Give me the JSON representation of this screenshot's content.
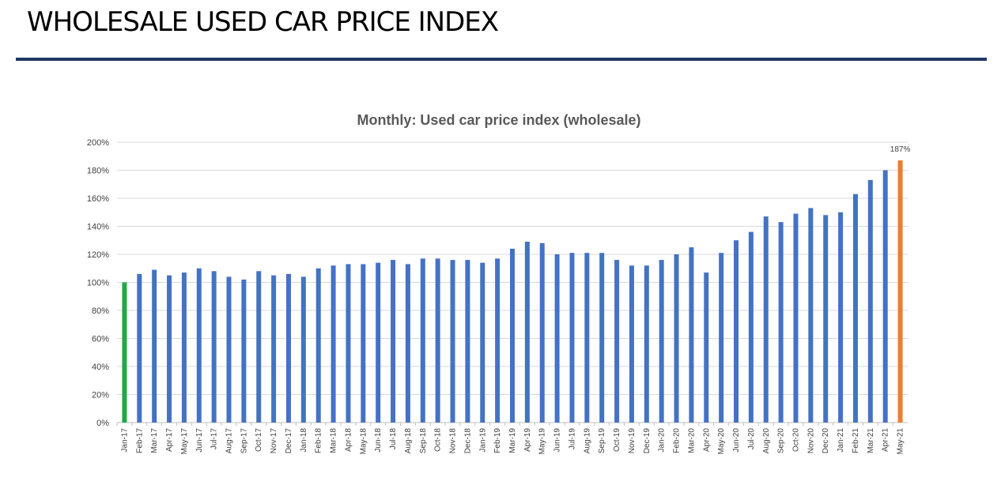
{
  "header": {
    "title": "WHOLESALE USED CAR PRICE INDEX"
  },
  "colors": {
    "rule": "#1f3864",
    "default_bar": "#4472c4",
    "first_bar": "#22a844",
    "last_bar": "#ed7d31",
    "grid": "#d9d9d9"
  },
  "chart_data": {
    "type": "bar",
    "title": "Monthly: Used car price index (wholesale)",
    "xlabel": "",
    "ylabel": "",
    "ylim": [
      0,
      200
    ],
    "yticks": [
      0,
      20,
      40,
      60,
      80,
      100,
      120,
      140,
      160,
      180,
      200
    ],
    "ytick_suffix": "%",
    "grid": true,
    "legend": "none",
    "categories": [
      "Jan-17",
      "Feb-17",
      "Mar-17",
      "Apr-17",
      "May-17",
      "Jun-17",
      "Jul-17",
      "Aug-17",
      "Sep-17",
      "Oct-17",
      "Nov-17",
      "Dec-17",
      "Jan-18",
      "Feb-18",
      "Mar-18",
      "Apr-18",
      "May-18",
      "Jun-18",
      "Jul-18",
      "Aug-18",
      "Sep-18",
      "Oct-18",
      "Nov-18",
      "Dec-18",
      "Jan-19",
      "Feb-19",
      "Mar-19",
      "Apr-19",
      "May-19",
      "Jun-19",
      "Jul-19",
      "Aug-19",
      "Sep-19",
      "Oct-19",
      "Nov-19",
      "Dec-19",
      "Jan-20",
      "Feb-20",
      "Mar-20",
      "Apr-20",
      "May-20",
      "Jun-20",
      "Jul-20",
      "Aug-20",
      "Sep-20",
      "Oct-20",
      "Nov-20",
      "Dec-20",
      "Jan-21",
      "Feb-21",
      "Mar-21",
      "Apr-21",
      "May-21"
    ],
    "values": [
      100,
      106,
      109,
      105,
      107,
      110,
      108,
      104,
      102,
      108,
      105,
      106,
      104,
      110,
      112,
      113,
      113,
      114,
      116,
      113,
      117,
      117,
      116,
      116,
      114,
      117,
      124,
      129,
      128,
      120,
      121,
      121,
      121,
      116,
      112,
      112,
      116,
      120,
      125,
      107,
      121,
      130,
      136,
      147,
      143,
      149,
      153,
      148,
      150,
      163,
      173,
      180,
      187
    ],
    "annotations": [
      {
        "category": "May-21",
        "text": "187%"
      }
    ]
  }
}
